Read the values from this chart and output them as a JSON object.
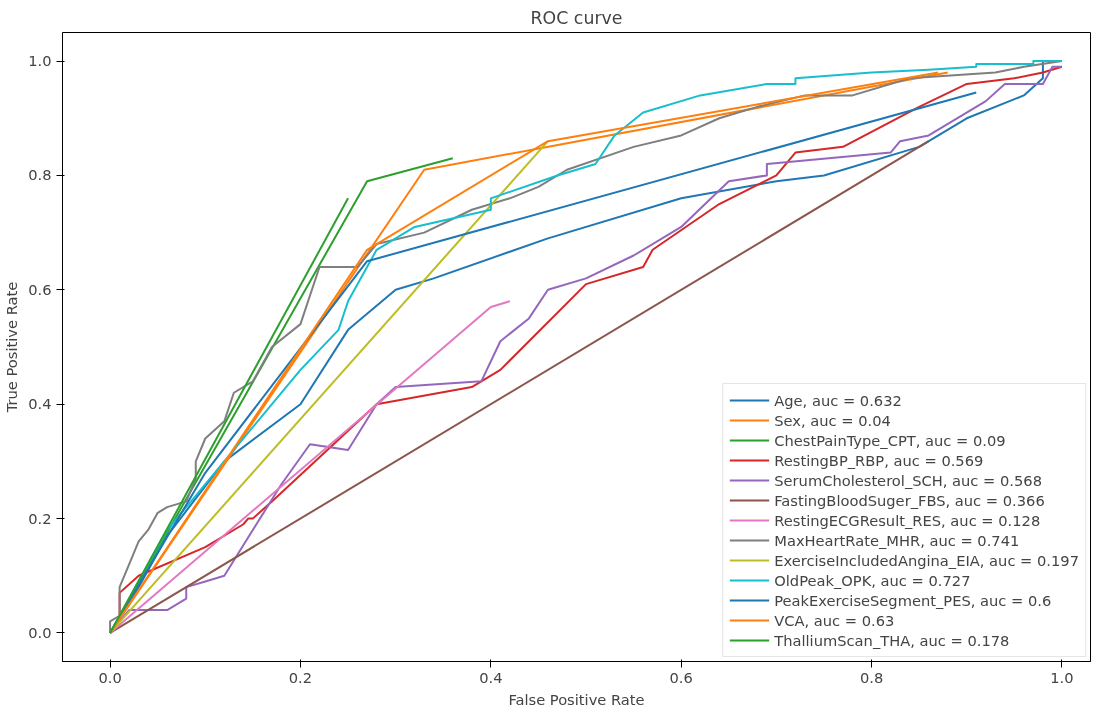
{
  "chart_data": {
    "type": "line",
    "title": "ROC curve",
    "xlabel": "False Positive Rate",
    "ylabel": "True Positive Rate",
    "xlim": [
      -0.05,
      1.03
    ],
    "ylim": [
      -0.05,
      1.05
    ],
    "xticks": [
      {
        "value": 0,
        "label": "0.0"
      },
      {
        "value": 0.2,
        "label": "0.2"
      },
      {
        "value": 0.4,
        "label": "0.4"
      },
      {
        "value": 0.6,
        "label": "0.6"
      },
      {
        "value": 0.8,
        "label": "0.8"
      },
      {
        "value": 1,
        "label": "1.0"
      }
    ],
    "yticks": [
      {
        "value": 0,
        "label": "0.0"
      },
      {
        "value": 0.2,
        "label": "0.2"
      },
      {
        "value": 0.4,
        "label": "0.4"
      },
      {
        "value": 0.6,
        "label": "0.6"
      },
      {
        "value": 0.8,
        "label": "0.8"
      },
      {
        "value": 1,
        "label": "1.0"
      }
    ],
    "grid": false,
    "legend": "bottom right",
    "marker": "none",
    "line_style": "solid",
    "series": [
      {
        "name": "Age, auc = 0.632",
        "color": "#1f77b4",
        "x": [
          0,
          0.02,
          0.06,
          0.12,
          0.2,
          0.25,
          0.3,
          0.34,
          0.46,
          0.6,
          0.7,
          0.75,
          0.85,
          0.9,
          0.96,
          0.98,
          0.98
        ],
        "values": [
          0,
          0.05,
          0.17,
          0.3,
          0.4,
          0.53,
          0.6,
          0.62,
          0.69,
          0.76,
          0.79,
          0.8,
          0.85,
          0.9,
          0.94,
          0.97,
          1.0
        ]
      },
      {
        "name": "Sex, auc = 0.04",
        "color": "#ff7f0e",
        "x": [
          0,
          0.33,
          0.88
        ],
        "values": [
          0,
          0.81,
          0.98
        ]
      },
      {
        "name": "ChestPainType_CPT, auc = 0.09",
        "color": "#2ca02c",
        "x": [
          0,
          0.27,
          0.36
        ],
        "values": [
          0,
          0.79,
          0.83
        ]
      },
      {
        "name": "RestingBP_RBP, auc = 0.569",
        "color": "#d62728",
        "x": [
          0,
          0.01,
          0.01,
          0.03,
          0.1,
          0.14,
          0.145,
          0.15,
          0.17,
          0.28,
          0.38,
          0.41,
          0.5,
          0.56,
          0.57,
          0.64,
          0.7,
          0.72,
          0.77,
          0.85,
          0.9,
          0.95,
          0.98,
          1
        ],
        "values": [
          0,
          0.02,
          0.07,
          0.1,
          0.15,
          0.19,
          0.2,
          0.2,
          0.23,
          0.4,
          0.43,
          0.46,
          0.61,
          0.64,
          0.67,
          0.75,
          0.8,
          0.84,
          0.85,
          0.92,
          0.96,
          0.97,
          0.98,
          0.99
        ]
      },
      {
        "name": "SerumCholesterol_SCH, auc = 0.568",
        "color": "#9467bd",
        "x": [
          0,
          0.02,
          0.06,
          0.08,
          0.08,
          0.1,
          0.12,
          0.18,
          0.21,
          0.25,
          0.28,
          0.3,
          0.39,
          0.41,
          0.44,
          0.46,
          0.5,
          0.55,
          0.6,
          0.65,
          0.69,
          0.69,
          0.82,
          0.83,
          0.86,
          0.92,
          0.94,
          0.98,
          0.99,
          1
        ],
        "values": [
          0,
          0.04,
          0.04,
          0.06,
          0.08,
          0.09,
          0.1,
          0.26,
          0.33,
          0.32,
          0.4,
          0.43,
          0.44,
          0.51,
          0.55,
          0.6,
          0.62,
          0.66,
          0.71,
          0.79,
          0.8,
          0.82,
          0.84,
          0.86,
          0.87,
          0.93,
          0.96,
          0.96,
          0.99,
          0.99
        ]
      },
      {
        "name": "FastingBloodSuger_FBS, auc = 0.366",
        "color": "#8c564b",
        "x": [
          0,
          0.86
        ],
        "values": [
          0,
          0.86
        ]
      },
      {
        "name": "RestingECGResult_RES, auc = 0.128",
        "color": "#e377c2",
        "x": [
          0,
          0.4,
          0.42
        ],
        "values": [
          0,
          0.57,
          0.58
        ]
      },
      {
        "name": "MaxHeartRate_MHR, auc = 0.741",
        "color": "#7f7f7f",
        "x": [
          0,
          0,
          0.01,
          0.01,
          0.02,
          0.03,
          0.04,
          0.05,
          0.06,
          0.08,
          0.09,
          0.09,
          0.1,
          0.12,
          0.13,
          0.15,
          0.17,
          0.2,
          0.22,
          0.26,
          0.28,
          0.33,
          0.38,
          0.42,
          0.45,
          0.48,
          0.55,
          0.6,
          0.64,
          0.68,
          0.73,
          0.78,
          0.84,
          0.93,
          0.96,
          1
        ],
        "values": [
          0,
          0.02,
          0.03,
          0.08,
          0.12,
          0.16,
          0.18,
          0.21,
          0.22,
          0.23,
          0.27,
          0.3,
          0.34,
          0.37,
          0.42,
          0.44,
          0.5,
          0.54,
          0.64,
          0.64,
          0.68,
          0.7,
          0.74,
          0.76,
          0.78,
          0.81,
          0.85,
          0.87,
          0.9,
          0.92,
          0.94,
          0.94,
          0.97,
          0.98,
          0.99,
          1
        ]
      },
      {
        "name": "ExerciseIncludedAngina_EIA, auc = 0.197",
        "color": "#bcbd22",
        "x": [
          0,
          0.46
        ],
        "values": [
          0,
          0.86
        ]
      },
      {
        "name": "OldPeak_OPK, auc = 0.727",
        "color": "#17becf",
        "x": [
          0,
          0.06,
          0.2,
          0.24,
          0.25,
          0.28,
          0.32,
          0.4,
          0.4,
          0.47,
          0.51,
          0.53,
          0.56,
          0.62,
          0.69,
          0.72,
          0.72,
          0.8,
          0.86,
          0.91,
          0.91,
          0.97,
          0.97,
          1
        ],
        "values": [
          0,
          0.18,
          0.46,
          0.53,
          0.58,
          0.67,
          0.71,
          0.74,
          0.76,
          0.8,
          0.82,
          0.87,
          0.91,
          0.94,
          0.96,
          0.96,
          0.97,
          0.98,
          0.985,
          0.99,
          0.995,
          0.995,
          1.0,
          1
        ]
      },
      {
        "name": "PeakExerciseSegment_PES, auc = 0.6",
        "color": "#1f77b4",
        "x": [
          0,
          0.1,
          0.27,
          0.91
        ],
        "values": [
          0,
          0.28,
          0.65,
          0.945
        ]
      },
      {
        "name": "VCA, auc = 0.63",
        "color": "#ff7f0e",
        "x": [
          0,
          0.27,
          0.46,
          0.87
        ],
        "values": [
          0,
          0.67,
          0.86,
          0.98
        ]
      },
      {
        "name": "ThalliumScan_THA, auc = 0.178",
        "color": "#2ca02c",
        "x": [
          0,
          0.25
        ],
        "values": [
          0,
          0.76
        ]
      }
    ]
  }
}
